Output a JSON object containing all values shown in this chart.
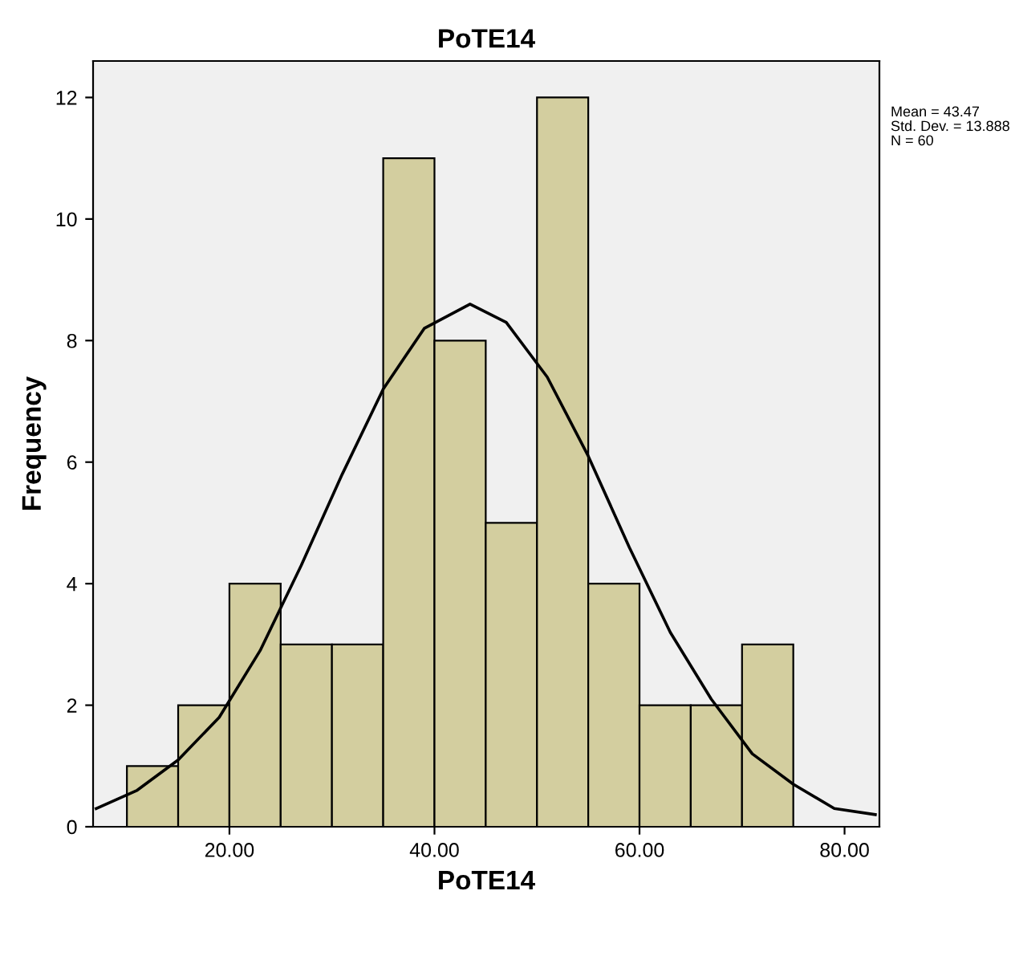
{
  "chart_data": {
    "type": "histogram",
    "title": "PoTE14",
    "xlabel": "PoTE14",
    "ylabel": "Frequency",
    "series": [
      {
        "color": "#d3ce9f",
        "bins": [
          10,
          15,
          20,
          25,
          30,
          35,
          40,
          45,
          50,
          55,
          60,
          65,
          70,
          75
        ],
        "values": [
          1,
          2,
          4,
          3,
          3,
          11,
          8,
          5,
          12,
          4,
          2,
          2,
          3
        ]
      },
      {
        "type": "line",
        "color": "#000000",
        "x": [
          7,
          11,
          15,
          19,
          23,
          27,
          31,
          35,
          39,
          43.47,
          47,
          51,
          55,
          59,
          63,
          67,
          71,
          75,
          79,
          83
        ],
        "values": [
          0.3,
          0.6,
          1.1,
          1.8,
          2.9,
          4.3,
          5.8,
          7.2,
          8.2,
          8.6,
          8.3,
          7.4,
          6.1,
          4.6,
          3.2,
          2.1,
          1.2,
          0.7,
          0.3,
          0.2
        ]
      }
    ],
    "xlim": [
      6.7,
      83.4
    ],
    "ylim": [
      0,
      12.6
    ],
    "xticks": [
      {
        "value": 20,
        "label": "20.00"
      },
      {
        "value": 40,
        "label": "40.00"
      },
      {
        "value": 60,
        "label": "60.00"
      },
      {
        "value": 80,
        "label": "80.00"
      }
    ],
    "yticks": [
      0,
      2,
      4,
      6,
      8,
      10,
      12
    ],
    "grid": false,
    "annotations": [
      "Mean = 43.47",
      "Std. Dev. = 13.888",
      "N = 60"
    ]
  }
}
